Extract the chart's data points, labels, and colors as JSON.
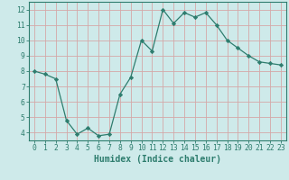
{
  "x": [
    0,
    1,
    2,
    3,
    4,
    5,
    6,
    7,
    8,
    9,
    10,
    11,
    12,
    13,
    14,
    15,
    16,
    17,
    18,
    19,
    20,
    21,
    22,
    23
  ],
  "y": [
    8.0,
    7.8,
    7.5,
    4.8,
    3.9,
    4.3,
    3.8,
    3.9,
    6.5,
    7.6,
    10.0,
    9.3,
    12.0,
    11.1,
    11.8,
    11.5,
    11.8,
    11.0,
    10.0,
    9.5,
    9.0,
    8.6,
    8.5,
    8.4
  ],
  "line_color": "#2e7d6e",
  "marker": "D",
  "marker_size": 2.2,
  "bg_color": "#ceeaea",
  "grid_major_color": "#b8d8d8",
  "grid_minor_color": "#d4ecec",
  "xlabel": "Humidex (Indice chaleur)",
  "xlim": [
    -0.5,
    23.5
  ],
  "ylim": [
    3.5,
    12.5
  ],
  "yticks": [
    4,
    5,
    6,
    7,
    8,
    9,
    10,
    11,
    12
  ],
  "xticks": [
    0,
    1,
    2,
    3,
    4,
    5,
    6,
    7,
    8,
    9,
    10,
    11,
    12,
    13,
    14,
    15,
    16,
    17,
    18,
    19,
    20,
    21,
    22,
    23
  ],
  "tick_fontsize": 5.8,
  "label_fontsize": 7.0
}
